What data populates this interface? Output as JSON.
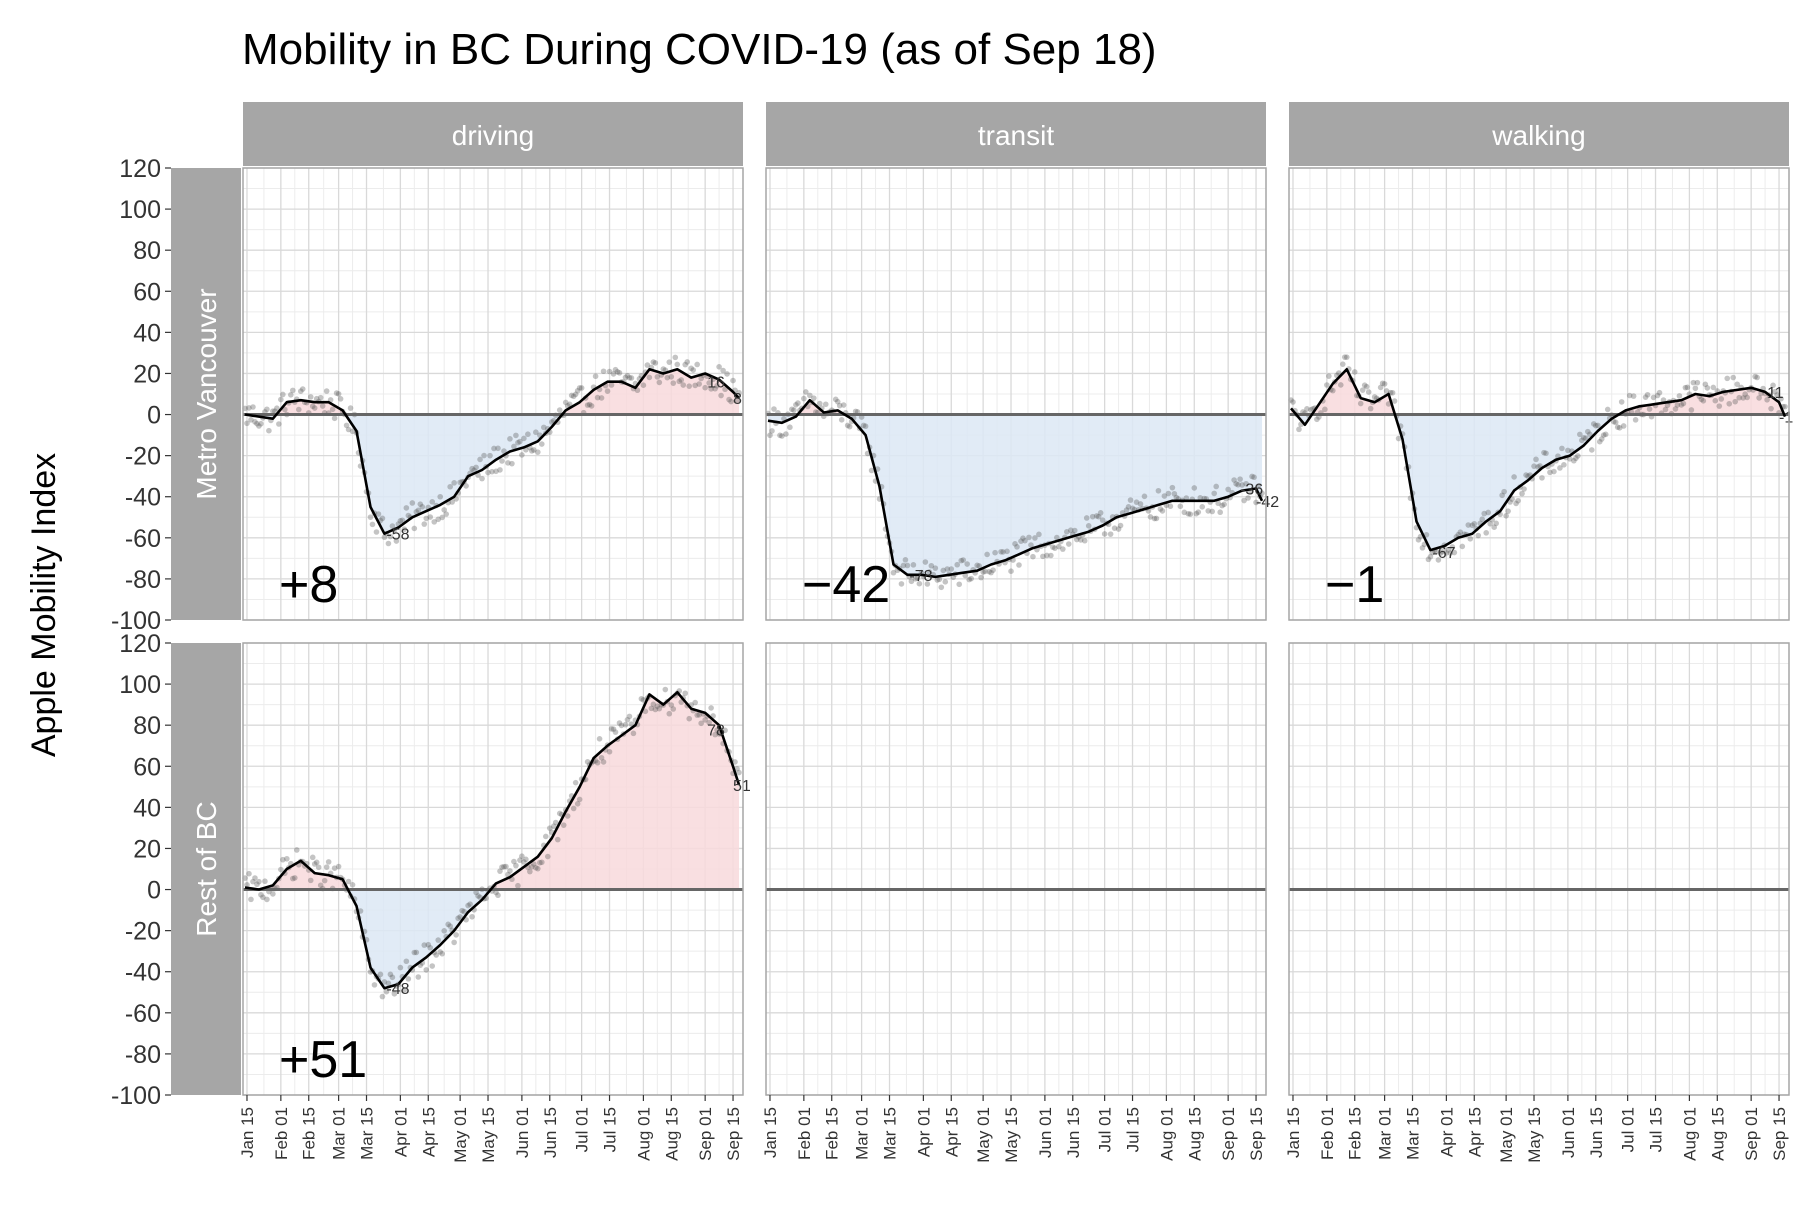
{
  "chart_data": {
    "type": "line",
    "title": "Mobility in BC During COVID-19 (as of Sep 18)",
    "ylabel": "Apple Mobility Index",
    "xlabel": "",
    "ylim": [
      -100,
      120
    ],
    "y_ticks": [
      -100,
      -80,
      -60,
      -40,
      -20,
      0,
      20,
      40,
      60,
      80,
      100,
      120
    ],
    "x_tick_labels": [
      "Jan 15",
      "Feb 01",
      "Feb 15",
      "Mar 01",
      "Mar 15",
      "Apr 01",
      "Apr 15",
      "May 01",
      "May 15",
      "Jun 01",
      "Jun 15",
      "Jul 01",
      "Jul 15",
      "Aug 01",
      "Aug 15",
      "Sep 01",
      "Sep 15"
    ],
    "x_tick_dates": [
      "2020-01-15",
      "2020-02-01",
      "2020-02-15",
      "2020-03-01",
      "2020-03-15",
      "2020-04-01",
      "2020-04-15",
      "2020-05-01",
      "2020-05-15",
      "2020-06-01",
      "2020-06-15",
      "2020-07-01",
      "2020-07-15",
      "2020-08-01",
      "2020-08-15",
      "2020-09-01",
      "2020-09-15"
    ],
    "xlim": [
      "2020-01-13",
      "2020-09-20"
    ],
    "columns": [
      "driving",
      "transit",
      "walking"
    ],
    "rows": [
      "Metro Vancouver",
      "Rest of BC"
    ],
    "grid": true,
    "legend": "none",
    "colors": {
      "line": "#000000",
      "points": "#555555",
      "positive_fill": "#f8d9dc",
      "negative_fill": "#dce8f5",
      "zero_line": "#666666",
      "strip_bg": "#a6a6a6",
      "panel_border": "#a6a6a6",
      "grid": "#d9d9d9"
    },
    "panels": [
      {
        "row": "Metro Vancouver",
        "column": "driving",
        "current_label": "+8",
        "annotations": [
          {
            "date": "2020-03-28",
            "value": -58,
            "text": "-58"
          },
          {
            "date": "2020-09-05",
            "value": 16,
            "text": "16"
          },
          {
            "date": "2020-09-18",
            "value": 8,
            "text": "8"
          }
        ],
        "series": {
          "dates": [
            "2020-01-14",
            "2020-01-21",
            "2020-01-28",
            "2020-02-04",
            "2020-02-11",
            "2020-02-18",
            "2020-02-25",
            "2020-03-03",
            "2020-03-10",
            "2020-03-17",
            "2020-03-24",
            "2020-03-31",
            "2020-04-07",
            "2020-04-14",
            "2020-04-21",
            "2020-04-28",
            "2020-05-05",
            "2020-05-12",
            "2020-05-19",
            "2020-05-26",
            "2020-06-02",
            "2020-06-09",
            "2020-06-16",
            "2020-06-23",
            "2020-06-30",
            "2020-07-07",
            "2020-07-14",
            "2020-07-21",
            "2020-07-28",
            "2020-08-04",
            "2020-08-11",
            "2020-08-18",
            "2020-08-25",
            "2020-09-01",
            "2020-09-08",
            "2020-09-15",
            "2020-09-18"
          ],
          "values": [
            0,
            -1,
            -2,
            6,
            7,
            6,
            6,
            2,
            -8,
            -45,
            -58,
            -55,
            -50,
            -47,
            -44,
            -40,
            -30,
            -27,
            -22,
            -18,
            -16,
            -13,
            -6,
            2,
            6,
            12,
            16,
            16,
            13,
            22,
            20,
            22,
            18,
            20,
            17,
            11,
            8
          ]
        }
      },
      {
        "row": "Metro Vancouver",
        "column": "transit",
        "current_label": "−42",
        "annotations": [
          {
            "date": "2020-03-28",
            "value": -78,
            "text": "-78"
          },
          {
            "date": "2020-09-10",
            "value": -36,
            "text": "-36"
          },
          {
            "date": "2020-09-18",
            "value": -42,
            "text": "-42"
          }
        ],
        "series": {
          "dates": [
            "2020-01-14",
            "2020-01-21",
            "2020-01-28",
            "2020-02-04",
            "2020-02-11",
            "2020-02-18",
            "2020-02-25",
            "2020-03-03",
            "2020-03-10",
            "2020-03-17",
            "2020-03-24",
            "2020-03-31",
            "2020-04-07",
            "2020-04-14",
            "2020-04-21",
            "2020-04-28",
            "2020-05-05",
            "2020-05-12",
            "2020-05-19",
            "2020-05-26",
            "2020-06-02",
            "2020-06-09",
            "2020-06-16",
            "2020-06-23",
            "2020-06-30",
            "2020-07-07",
            "2020-07-14",
            "2020-07-21",
            "2020-07-28",
            "2020-08-04",
            "2020-08-11",
            "2020-08-18",
            "2020-08-25",
            "2020-09-01",
            "2020-09-08",
            "2020-09-15",
            "2020-09-18"
          ],
          "values": [
            -3,
            -4,
            -1,
            7,
            1,
            2,
            -2,
            -10,
            -35,
            -73,
            -78,
            -78,
            -79,
            -78,
            -77,
            -76,
            -73,
            -71,
            -68,
            -65,
            -63,
            -61,
            -59,
            -57,
            -54,
            -50,
            -48,
            -46,
            -44,
            -42,
            -42,
            -42,
            -42,
            -40,
            -37,
            -36,
            -42
          ]
        }
      },
      {
        "row": "Metro Vancouver",
        "column": "walking",
        "current_label": "−1",
        "annotations": [
          {
            "date": "2020-03-28",
            "value": -67,
            "text": "-67"
          },
          {
            "date": "2020-09-12",
            "value": 11,
            "text": "11"
          },
          {
            "date": "2020-09-18",
            "value": -1,
            "text": "-1"
          }
        ],
        "series": {
          "dates": [
            "2020-01-14",
            "2020-01-21",
            "2020-01-28",
            "2020-02-04",
            "2020-02-11",
            "2020-02-18",
            "2020-02-25",
            "2020-03-03",
            "2020-03-10",
            "2020-03-17",
            "2020-03-24",
            "2020-03-31",
            "2020-04-07",
            "2020-04-14",
            "2020-04-21",
            "2020-04-28",
            "2020-05-05",
            "2020-05-12",
            "2020-05-19",
            "2020-05-26",
            "2020-06-02",
            "2020-06-09",
            "2020-06-16",
            "2020-06-23",
            "2020-06-30",
            "2020-07-07",
            "2020-07-14",
            "2020-07-21",
            "2020-07-28",
            "2020-08-04",
            "2020-08-11",
            "2020-08-18",
            "2020-08-25",
            "2020-09-01",
            "2020-09-08",
            "2020-09-15",
            "2020-09-18"
          ],
          "values": [
            3,
            -5,
            5,
            15,
            22,
            8,
            6,
            10,
            -12,
            -52,
            -66,
            -64,
            -60,
            -58,
            -52,
            -47,
            -37,
            -32,
            -26,
            -22,
            -20,
            -15,
            -8,
            -2,
            2,
            4,
            5,
            6,
            7,
            10,
            9,
            11,
            12,
            13,
            11,
            6,
            -1
          ]
        }
      },
      {
        "row": "Rest of BC",
        "column": "driving",
        "current_label": "+51",
        "annotations": [
          {
            "date": "2020-03-28",
            "value": -48,
            "text": "-48"
          },
          {
            "date": "2020-09-05",
            "value": 78,
            "text": "78"
          },
          {
            "date": "2020-09-18",
            "value": 51,
            "text": "51"
          }
        ],
        "series": {
          "dates": [
            "2020-01-14",
            "2020-01-21",
            "2020-01-28",
            "2020-02-04",
            "2020-02-11",
            "2020-02-18",
            "2020-02-25",
            "2020-03-03",
            "2020-03-10",
            "2020-03-17",
            "2020-03-24",
            "2020-03-31",
            "2020-04-07",
            "2020-04-14",
            "2020-04-21",
            "2020-04-28",
            "2020-05-05",
            "2020-05-12",
            "2020-05-19",
            "2020-05-26",
            "2020-06-02",
            "2020-06-09",
            "2020-06-16",
            "2020-06-23",
            "2020-06-30",
            "2020-07-07",
            "2020-07-14",
            "2020-07-21",
            "2020-07-28",
            "2020-08-04",
            "2020-08-11",
            "2020-08-18",
            "2020-08-25",
            "2020-09-01",
            "2020-09-08",
            "2020-09-15",
            "2020-09-18"
          ],
          "values": [
            1,
            0,
            2,
            10,
            14,
            8,
            7,
            5,
            -8,
            -38,
            -48,
            -46,
            -38,
            -33,
            -27,
            -20,
            -11,
            -5,
            3,
            6,
            11,
            16,
            25,
            38,
            50,
            64,
            70,
            75,
            80,
            95,
            90,
            96,
            88,
            86,
            80,
            60,
            51
          ]
        }
      },
      {
        "row": "Rest of BC",
        "column": "transit",
        "current_label": "",
        "annotations": [],
        "series": {
          "dates": [],
          "values": []
        }
      },
      {
        "row": "Rest of BC",
        "column": "walking",
        "current_label": "",
        "annotations": [],
        "series": {
          "dates": [],
          "values": []
        }
      }
    ]
  }
}
